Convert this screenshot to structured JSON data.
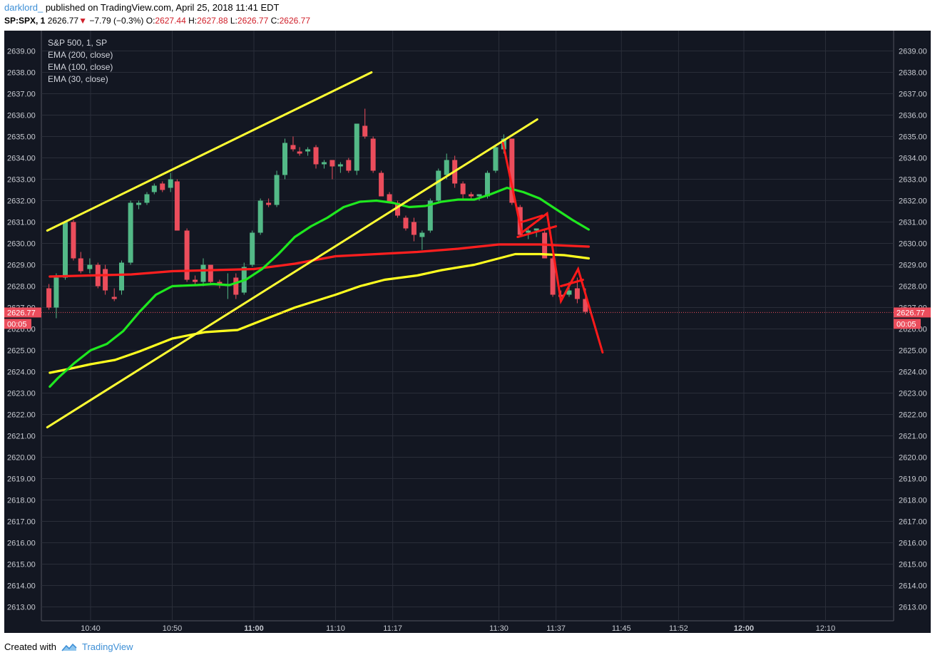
{
  "header": {
    "author": "darklord_",
    "published": "published on TradingView.com, April 25, 2018 11:41 EDT",
    "symbol": "SP:SPX, 1",
    "last": "2626.77",
    "change_arrow": "▼",
    "change": "−7.79 (−0.3%)",
    "o_label": "O:",
    "o_value": "2627.44",
    "h_label": "H:",
    "h_value": "2627.88",
    "l_label": "L:",
    "l_value": "2626.77",
    "c_label": "C:",
    "c_value": "2626.77"
  },
  "legend": {
    "title": "S&P 500, 1, SP",
    "items": [
      "EMA (200, close)",
      "EMA (100, close)",
      "EMA (30, close)"
    ]
  },
  "price_tag": {
    "price": "2626.77",
    "timer": "00:05"
  },
  "footer": {
    "created_with": "Created with",
    "brand": "TradingView",
    "logo_icon": "tradingview-cloud-icon"
  },
  "colors": {
    "background": "#131722",
    "up": "#53b987",
    "down": "#eb4d5c",
    "ema200": "#ff1f1f",
    "ema100": "#ffff1f",
    "ema30": "#1fe81f",
    "trendline": "#ffff33",
    "drawing": "#ff1a1a",
    "grid": "#2a2e39",
    "axis_text": "#c8cbd2"
  },
  "chart_data": {
    "type": "candlestick",
    "ylim": [
      2612.3,
      2639.5
    ],
    "y_ticks": [
      "2639.00",
      "2638.00",
      "2637.00",
      "2636.00",
      "2635.00",
      "2634.00",
      "2633.00",
      "2632.00",
      "2631.00",
      "2630.00",
      "2629.00",
      "2628.00",
      "2627.00",
      "2626.00",
      "2625.00",
      "2624.00",
      "2623.00",
      "2622.00",
      "2621.00",
      "2620.00",
      "2619.00",
      "2618.00",
      "2617.00",
      "2616.00",
      "2615.00",
      "2614.00",
      "2613.00"
    ],
    "x_ticks": [
      {
        "label": "10:40",
        "t": 0,
        "bold": false
      },
      {
        "label": "10:50",
        "t": 10,
        "bold": false
      },
      {
        "label": "11:00",
        "t": 20,
        "bold": true
      },
      {
        "label": "11:10",
        "t": 30,
        "bold": false
      },
      {
        "label": "11:17",
        "t": 37,
        "bold": false
      },
      {
        "label": "11:30",
        "t": 50,
        "bold": false
      },
      {
        "label": "11:37",
        "t": 57,
        "bold": false
      },
      {
        "label": "11:45",
        "t": 65,
        "bold": false
      },
      {
        "label": "11:52",
        "t": 72,
        "bold": false
      },
      {
        "label": "12:00",
        "t": 80,
        "bold": true
      },
      {
        "label": "12:10",
        "t": 90,
        "bold": false
      }
    ],
    "x_range": [
      -6,
      98
    ],
    "candles": [
      [
        -5.1,
        2627.9,
        2628.1,
        2626.9,
        2627.0
      ],
      [
        -4.2,
        2627.0,
        2628.6,
        2626.5,
        2628.4
      ],
      [
        -3.1,
        2628.4,
        2631.0,
        2628.3,
        2631.0
      ],
      [
        -2.1,
        2631.0,
        2631.1,
        2629.2,
        2629.3
      ],
      [
        -1.2,
        2629.3,
        2629.6,
        2628.6,
        2628.7
      ],
      [
        -0.1,
        2628.8,
        2629.3,
        2628.6,
        2629.0
      ],
      [
        0.9,
        2629.0,
        2629.1,
        2627.9,
        2628.0
      ],
      [
        1.8,
        2628.8,
        2629.0,
        2627.6,
        2627.8
      ],
      [
        2.9,
        2627.5,
        2627.9,
        2627.3,
        2627.4
      ],
      [
        3.8,
        2627.8,
        2629.2,
        2627.6,
        2629.1
      ],
      [
        4.9,
        2629.1,
        2632.0,
        2629.0,
        2631.9
      ],
      [
        5.9,
        2631.8,
        2632.0,
        2631.6,
        2631.9
      ],
      [
        6.9,
        2631.9,
        2632.4,
        2631.8,
        2632.3
      ],
      [
        7.8,
        2632.4,
        2632.8,
        2632.3,
        2632.7
      ],
      [
        8.8,
        2632.8,
        2632.9,
        2632.4,
        2632.5
      ],
      [
        9.8,
        2632.6,
        2633.3,
        2632.4,
        2633.0
      ],
      [
        10.6,
        2632.9,
        2633.0,
        2630.6,
        2630.6
      ],
      [
        11.8,
        2630.6,
        2630.7,
        2628.2,
        2628.3
      ],
      [
        12.8,
        2628.3,
        2628.5,
        2628.0,
        2628.2
      ],
      [
        13.8,
        2628.2,
        2629.3,
        2628.0,
        2629.0
      ],
      [
        14.7,
        2629.0,
        2629.0,
        2628.1,
        2628.2
      ],
      [
        15.8,
        2628.2,
        2628.3,
        2627.9,
        2628.1
      ],
      [
        16.8,
        2628.0,
        2628.6,
        2627.4,
        2628.1
      ],
      [
        17.8,
        2628.4,
        2628.6,
        2627.4,
        2627.6
      ],
      [
        18.8,
        2627.7,
        2629.1,
        2627.6,
        2628.9
      ],
      [
        19.8,
        2629.0,
        2630.6,
        2628.9,
        2630.5
      ],
      [
        20.8,
        2630.5,
        2632.1,
        2630.4,
        2632.0
      ],
      [
        21.8,
        2631.9,
        2632.1,
        2631.7,
        2631.8
      ],
      [
        22.8,
        2631.8,
        2633.4,
        2631.7,
        2633.2
      ],
      [
        23.8,
        2633.2,
        2634.9,
        2633.0,
        2634.7
      ],
      [
        24.8,
        2634.6,
        2635.0,
        2634.3,
        2634.4
      ],
      [
        25.6,
        2634.3,
        2634.5,
        2634.1,
        2634.2
      ],
      [
        26.6,
        2634.3,
        2634.5,
        2634.1,
        2634.4
      ],
      [
        27.6,
        2634.5,
        2634.6,
        2633.5,
        2633.7
      ],
      [
        28.6,
        2633.7,
        2633.9,
        2633.5,
        2633.8
      ],
      [
        29.6,
        2633.9,
        2633.9,
        2633.0,
        2633.6
      ],
      [
        30.6,
        2633.6,
        2633.8,
        2633.3,
        2633.7
      ],
      [
        31.6,
        2633.9,
        2634.0,
        2633.3,
        2633.4
      ],
      [
        32.6,
        2633.4,
        2635.6,
        2633.2,
        2635.6
      ],
      [
        33.6,
        2635.5,
        2636.3,
        2634.9,
        2635.0
      ],
      [
        34.6,
        2634.9,
        2635.0,
        2633.3,
        2633.4
      ],
      [
        35.6,
        2633.3,
        2633.4,
        2632.3,
        2632.2
      ],
      [
        36.6,
        2632.3,
        2632.4,
        2631.9,
        2631.9
      ],
      [
        37.6,
        2631.9,
        2632.0,
        2631.2,
        2631.3
      ],
      [
        38.6,
        2631.2,
        2631.3,
        2630.6,
        2630.7
      ],
      [
        39.6,
        2631.0,
        2631.2,
        2630.1,
        2630.4
      ],
      [
        40.6,
        2630.3,
        2630.6,
        2629.7,
        2630.5
      ],
      [
        41.6,
        2630.6,
        2632.1,
        2630.5,
        2632.0
      ],
      [
        42.6,
        2632.0,
        2633.5,
        2631.9,
        2633.4
      ],
      [
        43.6,
        2633.2,
        2634.2,
        2633.0,
        2633.9
      ],
      [
        44.6,
        2633.9,
        2634.1,
        2632.6,
        2632.8
      ],
      [
        45.6,
        2632.8,
        2632.9,
        2632.1,
        2632.3
      ],
      [
        46.6,
        2632.3,
        2632.4,
        2632.1,
        2632.2
      ],
      [
        47.6,
        2632.2,
        2632.3,
        2632.0,
        2632.3
      ],
      [
        48.6,
        2632.2,
        2633.4,
        2632.1,
        2633.3
      ],
      [
        49.6,
        2633.4,
        2634.6,
        2633.3,
        2634.5
      ],
      [
        50.6,
        2634.4,
        2635.1,
        2634.2,
        2634.9
      ],
      [
        51.6,
        2634.9,
        2634.9,
        2631.8,
        2631.9
      ],
      [
        52.6,
        2631.7,
        2631.8,
        2630.3,
        2630.4
      ],
      [
        53.6,
        2630.5,
        2630.7,
        2630.2,
        2630.6
      ],
      [
        54.6,
        2630.6,
        2630.7,
        2630.3,
        2630.7
      ],
      [
        55.6,
        2630.5,
        2630.6,
        2629.3,
        2629.3
      ],
      [
        56.6,
        2629.3,
        2629.4,
        2627.5,
        2627.6
      ],
      [
        57.6,
        2627.6,
        2627.8,
        2627.3,
        2627.5
      ],
      [
        58.6,
        2627.6,
        2628.2,
        2627.5,
        2627.8
      ],
      [
        59.6,
        2627.9,
        2628.4,
        2627.2,
        2627.4
      ],
      [
        60.6,
        2627.4,
        2627.9,
        2626.7,
        2626.8
      ]
    ],
    "series": [
      {
        "name": "EMA (200, close)",
        "color": "#ff1f1f",
        "points": [
          [
            -5,
            2628.45
          ],
          [
            0,
            2628.5
          ],
          [
            5,
            2628.55
          ],
          [
            10,
            2628.7
          ],
          [
            15,
            2628.75
          ],
          [
            20,
            2628.8
          ],
          [
            25,
            2629.05
          ],
          [
            30,
            2629.4
          ],
          [
            35,
            2629.5
          ],
          [
            40,
            2629.6
          ],
          [
            45,
            2629.75
          ],
          [
            50,
            2629.95
          ],
          [
            55,
            2629.95
          ],
          [
            61,
            2629.85
          ]
        ]
      },
      {
        "name": "EMA (100, close)",
        "color": "#ffff1f",
        "points": [
          [
            -5,
            2623.95
          ],
          [
            -3,
            2624.1
          ],
          [
            0,
            2624.35
          ],
          [
            3,
            2624.55
          ],
          [
            6,
            2624.95
          ],
          [
            10,
            2625.55
          ],
          [
            14,
            2625.85
          ],
          [
            18,
            2625.95
          ],
          [
            21,
            2626.4
          ],
          [
            25,
            2627.0
          ],
          [
            30,
            2627.6
          ],
          [
            33,
            2628.0
          ],
          [
            36,
            2628.3
          ],
          [
            40,
            2628.5
          ],
          [
            43,
            2628.75
          ],
          [
            47,
            2629.0
          ],
          [
            50,
            2629.3
          ],
          [
            52,
            2629.5
          ],
          [
            55,
            2629.5
          ],
          [
            58,
            2629.45
          ],
          [
            61,
            2629.3
          ]
        ]
      },
      {
        "name": "EMA (30, close)",
        "color": "#1fe81f",
        "points": [
          [
            -5,
            2623.3
          ],
          [
            -4,
            2623.7
          ],
          [
            -2,
            2624.4
          ],
          [
            0,
            2625.0
          ],
          [
            2,
            2625.3
          ],
          [
            4,
            2625.9
          ],
          [
            6,
            2626.8
          ],
          [
            8,
            2627.6
          ],
          [
            10,
            2628.0
          ],
          [
            13,
            2628.05
          ],
          [
            15,
            2628.1
          ],
          [
            17,
            2628.05
          ],
          [
            19,
            2628.3
          ],
          [
            21,
            2628.8
          ],
          [
            23,
            2629.5
          ],
          [
            25,
            2630.3
          ],
          [
            27,
            2630.8
          ],
          [
            29,
            2631.2
          ],
          [
            31,
            2631.7
          ],
          [
            33,
            2631.95
          ],
          [
            35,
            2632.0
          ],
          [
            37,
            2631.9
          ],
          [
            39,
            2631.7
          ],
          [
            41,
            2631.75
          ],
          [
            43,
            2631.95
          ],
          [
            45,
            2632.05
          ],
          [
            47,
            2632.05
          ],
          [
            49,
            2632.3
          ],
          [
            51,
            2632.6
          ],
          [
            53,
            2632.4
          ],
          [
            55,
            2632.1
          ],
          [
            57,
            2631.6
          ],
          [
            59,
            2631.1
          ],
          [
            61,
            2630.65
          ]
        ]
      }
    ],
    "trendlines": [
      {
        "color": "#ffff33",
        "points": [
          [
            -5.3,
            2630.6
          ],
          [
            34.4,
            2638.0
          ]
        ]
      },
      {
        "color": "#ffff33",
        "points": [
          [
            -5.3,
            2621.4
          ],
          [
            54.7,
            2635.8
          ]
        ]
      }
    ],
    "drawings": [
      {
        "color": "#ff1a1a",
        "points": [
          [
            50.5,
            2634.7
          ],
          [
            52.8,
            2630.5
          ],
          [
            55.9,
            2631.4
          ],
          [
            57.6,
            2627.3
          ],
          [
            59.7,
            2628.8
          ],
          [
            62.7,
            2624.9
          ]
        ]
      },
      {
        "color": "#ff1a1a",
        "points": [
          [
            52.3,
            2630.3
          ],
          [
            57.0,
            2630.8
          ]
        ]
      },
      {
        "color": "#ff1a1a",
        "points": [
          [
            52.8,
            2631.0
          ],
          [
            55.3,
            2631.3
          ]
        ]
      },
      {
        "color": "#ff1a1a",
        "points": [
          [
            57.6,
            2628.0
          ],
          [
            60.3,
            2628.3
          ]
        ]
      }
    ]
  }
}
